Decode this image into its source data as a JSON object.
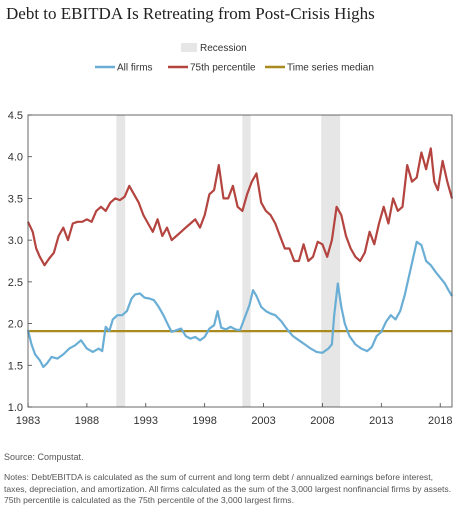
{
  "title": "Debt to EBITDA Is Retreating from Post-Crisis Highs",
  "source": "Source: Compustat.",
  "notes": "Notes: Debt/EBITDA is calculated as the sum of current and long term debt / annualized earnings before interest, taxes, depreciation, and amortization. All firms calculated as the sum of the 3,000 largest nonfinancial firms by assets. 75th percentile is calculated as the 75th percentile of the 3,000 largest firms.",
  "colors": {
    "all_firms": "#6aaed6",
    "p75": "#b4443f",
    "median": "#a98a1e",
    "recession": "#e6e6e6"
  },
  "chart_data": {
    "type": "line",
    "xlim": [
      1983,
      2019
    ],
    "ylim": [
      1.0,
      4.5
    ],
    "xticks": [
      1983,
      1988,
      1993,
      1998,
      2003,
      2008,
      2013,
      2018
    ],
    "yticks": [
      "1.0",
      "1.5",
      "2.0",
      "2.5",
      "3.0",
      "3.5",
      "4.0",
      "4.5"
    ],
    "recessions": [
      {
        "label": "Recession",
        "start": 1990.5,
        "end": 1991.25
      },
      {
        "start": 2001.2,
        "end": 2001.9
      },
      {
        "start": 2007.9,
        "end": 2009.5
      }
    ],
    "series": [
      {
        "name": "All firms",
        "color_key": "all_firms",
        "points": [
          [
            1983.0,
            1.92
          ],
          [
            1983.3,
            1.75
          ],
          [
            1983.6,
            1.63
          ],
          [
            1984.0,
            1.56
          ],
          [
            1984.3,
            1.48
          ],
          [
            1984.6,
            1.52
          ],
          [
            1985.0,
            1.6
          ],
          [
            1985.5,
            1.58
          ],
          [
            1986.0,
            1.63
          ],
          [
            1986.5,
            1.7
          ],
          [
            1987.0,
            1.74
          ],
          [
            1987.5,
            1.8
          ],
          [
            1988.0,
            1.7
          ],
          [
            1988.5,
            1.66
          ],
          [
            1989.0,
            1.7
          ],
          [
            1989.3,
            1.67
          ],
          [
            1989.6,
            1.96
          ],
          [
            1989.9,
            1.91
          ],
          [
            1990.2,
            2.05
          ],
          [
            1990.6,
            2.1
          ],
          [
            1991.0,
            2.1
          ],
          [
            1991.4,
            2.15
          ],
          [
            1991.8,
            2.3
          ],
          [
            1992.1,
            2.35
          ],
          [
            1992.5,
            2.36
          ],
          [
            1992.9,
            2.31
          ],
          [
            1993.3,
            2.3
          ],
          [
            1993.7,
            2.28
          ],
          [
            1994.1,
            2.2
          ],
          [
            1994.5,
            2.1
          ],
          [
            1994.9,
            1.98
          ],
          [
            1995.2,
            1.9
          ],
          [
            1995.6,
            1.92
          ],
          [
            1996.0,
            1.94
          ],
          [
            1996.4,
            1.85
          ],
          [
            1996.8,
            1.82
          ],
          [
            1997.2,
            1.84
          ],
          [
            1997.6,
            1.8
          ],
          [
            1998.0,
            1.84
          ],
          [
            1998.4,
            1.94
          ],
          [
            1998.8,
            1.98
          ],
          [
            1999.1,
            2.15
          ],
          [
            1999.4,
            1.95
          ],
          [
            1999.8,
            1.93
          ],
          [
            2000.2,
            1.96
          ],
          [
            2000.6,
            1.93
          ],
          [
            2001.0,
            1.92
          ],
          [
            2001.4,
            2.07
          ],
          [
            2001.8,
            2.22
          ],
          [
            2002.1,
            2.4
          ],
          [
            2002.4,
            2.33
          ],
          [
            2002.8,
            2.2
          ],
          [
            2003.2,
            2.15
          ],
          [
            2003.6,
            2.12
          ],
          [
            2004.0,
            2.1
          ],
          [
            2004.5,
            2.03
          ],
          [
            2005.0,
            1.93
          ],
          [
            2005.5,
            1.85
          ],
          [
            2006.0,
            1.8
          ],
          [
            2006.5,
            1.75
          ],
          [
            2007.0,
            1.7
          ],
          [
            2007.5,
            1.66
          ],
          [
            2008.0,
            1.65
          ],
          [
            2008.5,
            1.7
          ],
          [
            2008.8,
            1.75
          ],
          [
            2009.0,
            2.1
          ],
          [
            2009.3,
            2.48
          ],
          [
            2009.6,
            2.2
          ],
          [
            2009.9,
            2.0
          ],
          [
            2010.3,
            1.85
          ],
          [
            2010.8,
            1.75
          ],
          [
            2011.3,
            1.7
          ],
          [
            2011.8,
            1.67
          ],
          [
            2012.2,
            1.72
          ],
          [
            2012.6,
            1.85
          ],
          [
            2013.0,
            1.9
          ],
          [
            2013.4,
            2.02
          ],
          [
            2013.8,
            2.1
          ],
          [
            2014.2,
            2.05
          ],
          [
            2014.6,
            2.15
          ],
          [
            2015.0,
            2.35
          ],
          [
            2015.4,
            2.6
          ],
          [
            2015.8,
            2.85
          ],
          [
            2016.0,
            2.98
          ],
          [
            2016.4,
            2.94
          ],
          [
            2016.8,
            2.75
          ],
          [
            2017.2,
            2.7
          ],
          [
            2017.6,
            2.62
          ],
          [
            2018.0,
            2.55
          ],
          [
            2018.4,
            2.48
          ],
          [
            2018.7,
            2.4
          ],
          [
            2019.0,
            2.33
          ]
        ]
      },
      {
        "name": "75th percentile",
        "color_key": "p75",
        "points": [
          [
            1983.0,
            3.22
          ],
          [
            1983.4,
            3.1
          ],
          [
            1983.7,
            2.9
          ],
          [
            1984.0,
            2.8
          ],
          [
            1984.4,
            2.7
          ],
          [
            1984.8,
            2.78
          ],
          [
            1985.2,
            2.85
          ],
          [
            1985.6,
            3.05
          ],
          [
            1986.0,
            3.15
          ],
          [
            1986.4,
            3.0
          ],
          [
            1986.8,
            3.2
          ],
          [
            1987.2,
            3.22
          ],
          [
            1987.6,
            3.22
          ],
          [
            1988.0,
            3.25
          ],
          [
            1988.4,
            3.22
          ],
          [
            1988.8,
            3.35
          ],
          [
            1989.2,
            3.4
          ],
          [
            1989.6,
            3.35
          ],
          [
            1990.0,
            3.45
          ],
          [
            1990.4,
            3.5
          ],
          [
            1990.8,
            3.48
          ],
          [
            1991.2,
            3.52
          ],
          [
            1991.6,
            3.65
          ],
          [
            1992.0,
            3.55
          ],
          [
            1992.4,
            3.45
          ],
          [
            1992.8,
            3.3
          ],
          [
            1993.2,
            3.2
          ],
          [
            1993.6,
            3.1
          ],
          [
            1994.0,
            3.25
          ],
          [
            1994.4,
            3.05
          ],
          [
            1994.8,
            3.15
          ],
          [
            1995.2,
            3.0
          ],
          [
            1995.6,
            3.05
          ],
          [
            1996.0,
            3.1
          ],
          [
            1996.4,
            3.15
          ],
          [
            1996.8,
            3.2
          ],
          [
            1997.2,
            3.25
          ],
          [
            1997.6,
            3.15
          ],
          [
            1998.0,
            3.3
          ],
          [
            1998.4,
            3.55
          ],
          [
            1998.8,
            3.6
          ],
          [
            1999.2,
            3.9
          ],
          [
            1999.6,
            3.5
          ],
          [
            2000.0,
            3.5
          ],
          [
            2000.4,
            3.65
          ],
          [
            2000.8,
            3.4
          ],
          [
            2001.2,
            3.35
          ],
          [
            2001.6,
            3.55
          ],
          [
            2002.0,
            3.7
          ],
          [
            2002.4,
            3.8
          ],
          [
            2002.8,
            3.45
          ],
          [
            2003.2,
            3.35
          ],
          [
            2003.6,
            3.3
          ],
          [
            2004.0,
            3.2
          ],
          [
            2004.4,
            3.05
          ],
          [
            2004.8,
            2.9
          ],
          [
            2005.2,
            2.9
          ],
          [
            2005.6,
            2.75
          ],
          [
            2006.0,
            2.75
          ],
          [
            2006.4,
            2.95
          ],
          [
            2006.8,
            2.75
          ],
          [
            2007.2,
            2.8
          ],
          [
            2007.6,
            2.98
          ],
          [
            2008.0,
            2.95
          ],
          [
            2008.4,
            2.8
          ],
          [
            2008.8,
            3.0
          ],
          [
            2009.2,
            3.4
          ],
          [
            2009.6,
            3.3
          ],
          [
            2010.0,
            3.05
          ],
          [
            2010.4,
            2.9
          ],
          [
            2010.8,
            2.8
          ],
          [
            2011.2,
            2.75
          ],
          [
            2011.6,
            2.85
          ],
          [
            2012.0,
            3.1
          ],
          [
            2012.4,
            2.95
          ],
          [
            2012.8,
            3.2
          ],
          [
            2013.2,
            3.4
          ],
          [
            2013.6,
            3.2
          ],
          [
            2014.0,
            3.5
          ],
          [
            2014.4,
            3.35
          ],
          [
            2014.8,
            3.4
          ],
          [
            2015.2,
            3.9
          ],
          [
            2015.6,
            3.7
          ],
          [
            2016.0,
            3.75
          ],
          [
            2016.4,
            4.05
          ],
          [
            2016.8,
            3.85
          ],
          [
            2017.2,
            4.1
          ],
          [
            2017.5,
            3.7
          ],
          [
            2017.8,
            3.6
          ],
          [
            2018.2,
            3.95
          ],
          [
            2018.6,
            3.7
          ],
          [
            2019.0,
            3.5
          ]
        ]
      },
      {
        "name": "Time series median",
        "color_key": "median",
        "points": [
          [
            1983.0,
            1.91
          ],
          [
            2019.0,
            1.91
          ]
        ]
      }
    ]
  }
}
